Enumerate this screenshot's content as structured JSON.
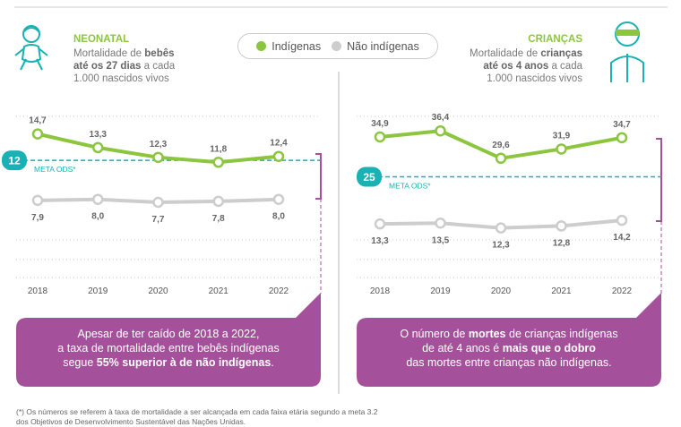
{
  "chart_data": [
    {
      "type": "line",
      "title": "NEONATAL",
      "subtitle": [
        "Mortalidade de ",
        "bebês",
        "até os 27 dias",
        " a cada",
        "1.000 nascidos vivos"
      ],
      "x": [
        "2018",
        "2019",
        "2020",
        "2021",
        "2022"
      ],
      "series": [
        {
          "name": "Indígenas",
          "color": "#8cc63f",
          "values": [
            14.7,
            13.3,
            12.3,
            11.8,
            12.4
          ],
          "value_labels": [
            "14,7",
            "13,3",
            "12,3",
            "11,8",
            "12,4"
          ]
        },
        {
          "name": "Não indígenas",
          "color": "#cdcdcd",
          "values": [
            7.9,
            8.0,
            7.7,
            7.8,
            8.0
          ],
          "value_labels": [
            "7,9",
            "8,0",
            "7,7",
            "7,8",
            "8,0"
          ]
        }
      ],
      "target": {
        "value": 12,
        "label": "META ODS*"
      },
      "ylim": [
        0,
        16.5
      ],
      "note": [
        "Apesar de ter caído de 2018 a 2022,",
        "a taxa de mortalidade entre bebês indígenas",
        "segue ",
        "55% superior à de não indígenas",
        "."
      ]
    },
    {
      "type": "line",
      "title": "CRIANÇAS",
      "subtitle": [
        "Mortalidade de ",
        "crianças",
        "até os 4 anos",
        " a cada",
        "1.000 nascidos vivos"
      ],
      "x": [
        "2018",
        "2019",
        "2020",
        "2021",
        "2022"
      ],
      "series": [
        {
          "color": "#8cc63f",
          "values": [
            34.9,
            36.4,
            29.6,
            31.9,
            34.7
          ],
          "value_labels": [
            "34,9",
            "36,4",
            "29,6",
            "31,9",
            "34,7"
          ]
        },
        {
          "color": "#cdcdcd",
          "values": [
            13.3,
            13.5,
            12.3,
            12.8,
            14.2
          ],
          "value_labels": [
            "13,3",
            "13,5",
            "12,3",
            "12,8",
            "14,2"
          ]
        }
      ],
      "target": {
        "value": 25,
        "label": "META ODS*"
      },
      "ylim": [
        0,
        40
      ],
      "note": [
        "O número de ",
        "mortes",
        " de crianças indígenas",
        "de até 4 anos é ",
        "mais que o dobro",
        "das mortes entre crianças não indígenas."
      ]
    }
  ],
  "footnote": [
    "(*) Os números se referem à taxa de mortalidade a ser alcançada em cada faixa etária segundo a meta 3.2",
    "dos Objetivos de Desenvolvimento Sustentável das Nações Unidas."
  ]
}
